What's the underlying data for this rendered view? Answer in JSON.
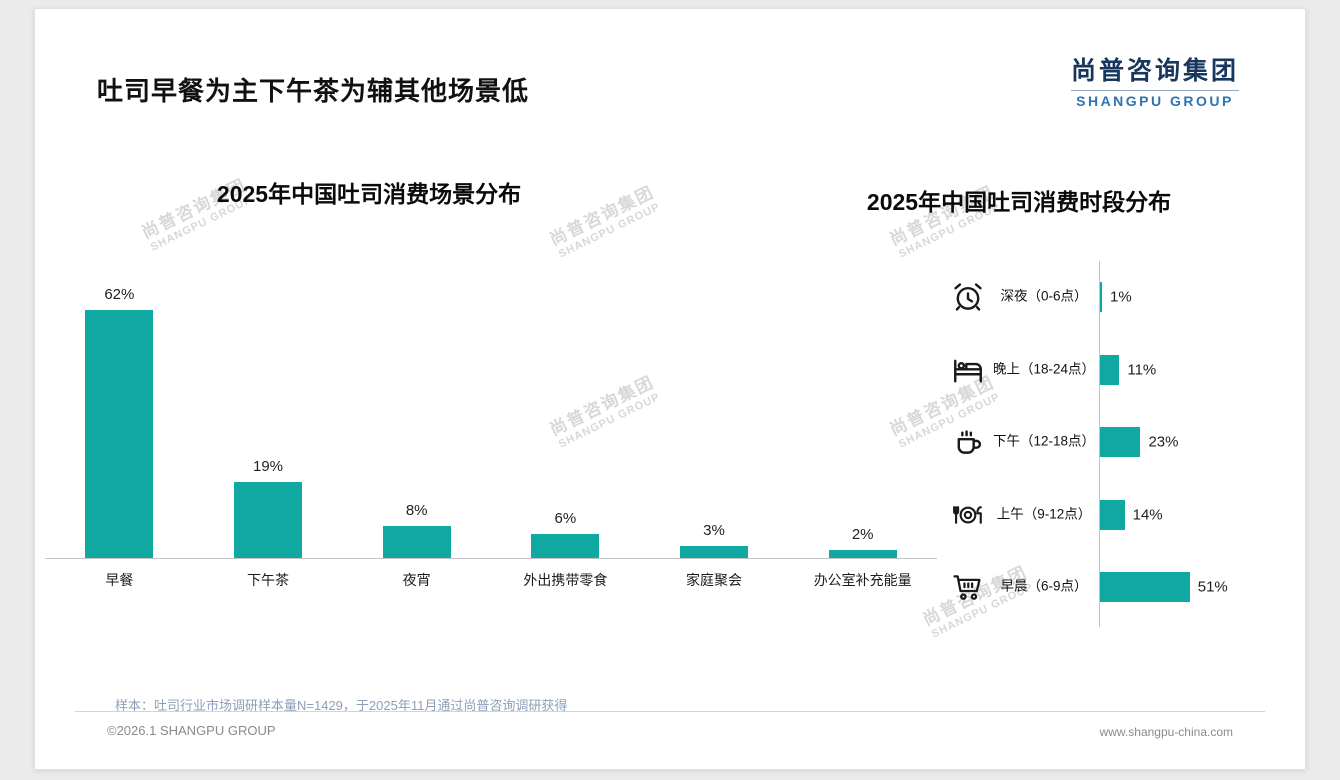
{
  "page": {
    "title": "吐司早餐为主下午茶为辅其他场景低",
    "logo": {
      "cn": "尚普咨询集团",
      "en": "SHANGPU GROUP"
    },
    "watermark_cn": "尚普咨询集团",
    "watermark_en": "SHANGPU GROUP",
    "sample_note": "样本：吐司行业市场调研样本量N=1429，于2025年11月通过尚普咨询调研获得",
    "footer_left": "©2026.1 SHANGPU GROUP",
    "footer_right": "www.shangpu-china.com",
    "accent_color": "#10A8A0"
  },
  "chart_data": [
    {
      "type": "bar",
      "orientation": "vertical",
      "title": "2025年中国吐司消费场景分布",
      "categories": [
        "早餐",
        "下午茶",
        "夜宵",
        "外出携带零食",
        "家庭聚会",
        "办公室补充能量"
      ],
      "values": [
        62,
        19,
        8,
        6,
        3,
        2
      ],
      "value_labels": [
        "62%",
        "19%",
        "8%",
        "6%",
        "3%",
        "2%"
      ],
      "unit": "%",
      "ylim": [
        0,
        70
      ],
      "grid": false,
      "legend": false,
      "bar_color": "#10A8A0"
    },
    {
      "type": "bar",
      "orientation": "horizontal",
      "title": "2025年中国吐司消费时段分布",
      "categories": [
        "深夜（0-6点）",
        "晚上（18-24点）",
        "下午（12-18点）",
        "上午（9-12点）",
        "早晨（6-9点）"
      ],
      "values": [
        1,
        11,
        23,
        14,
        51
      ],
      "value_labels": [
        "1%",
        "11%",
        "23%",
        "14%",
        "51%"
      ],
      "icons": [
        "alarm-clock-icon",
        "bed-icon",
        "coffee-cup-icon",
        "dining-plate-icon",
        "shopping-cart-icon"
      ],
      "unit": "%",
      "xlim": [
        0,
        60
      ],
      "grid": false,
      "legend": false,
      "bar_color": "#10A8A0"
    }
  ]
}
